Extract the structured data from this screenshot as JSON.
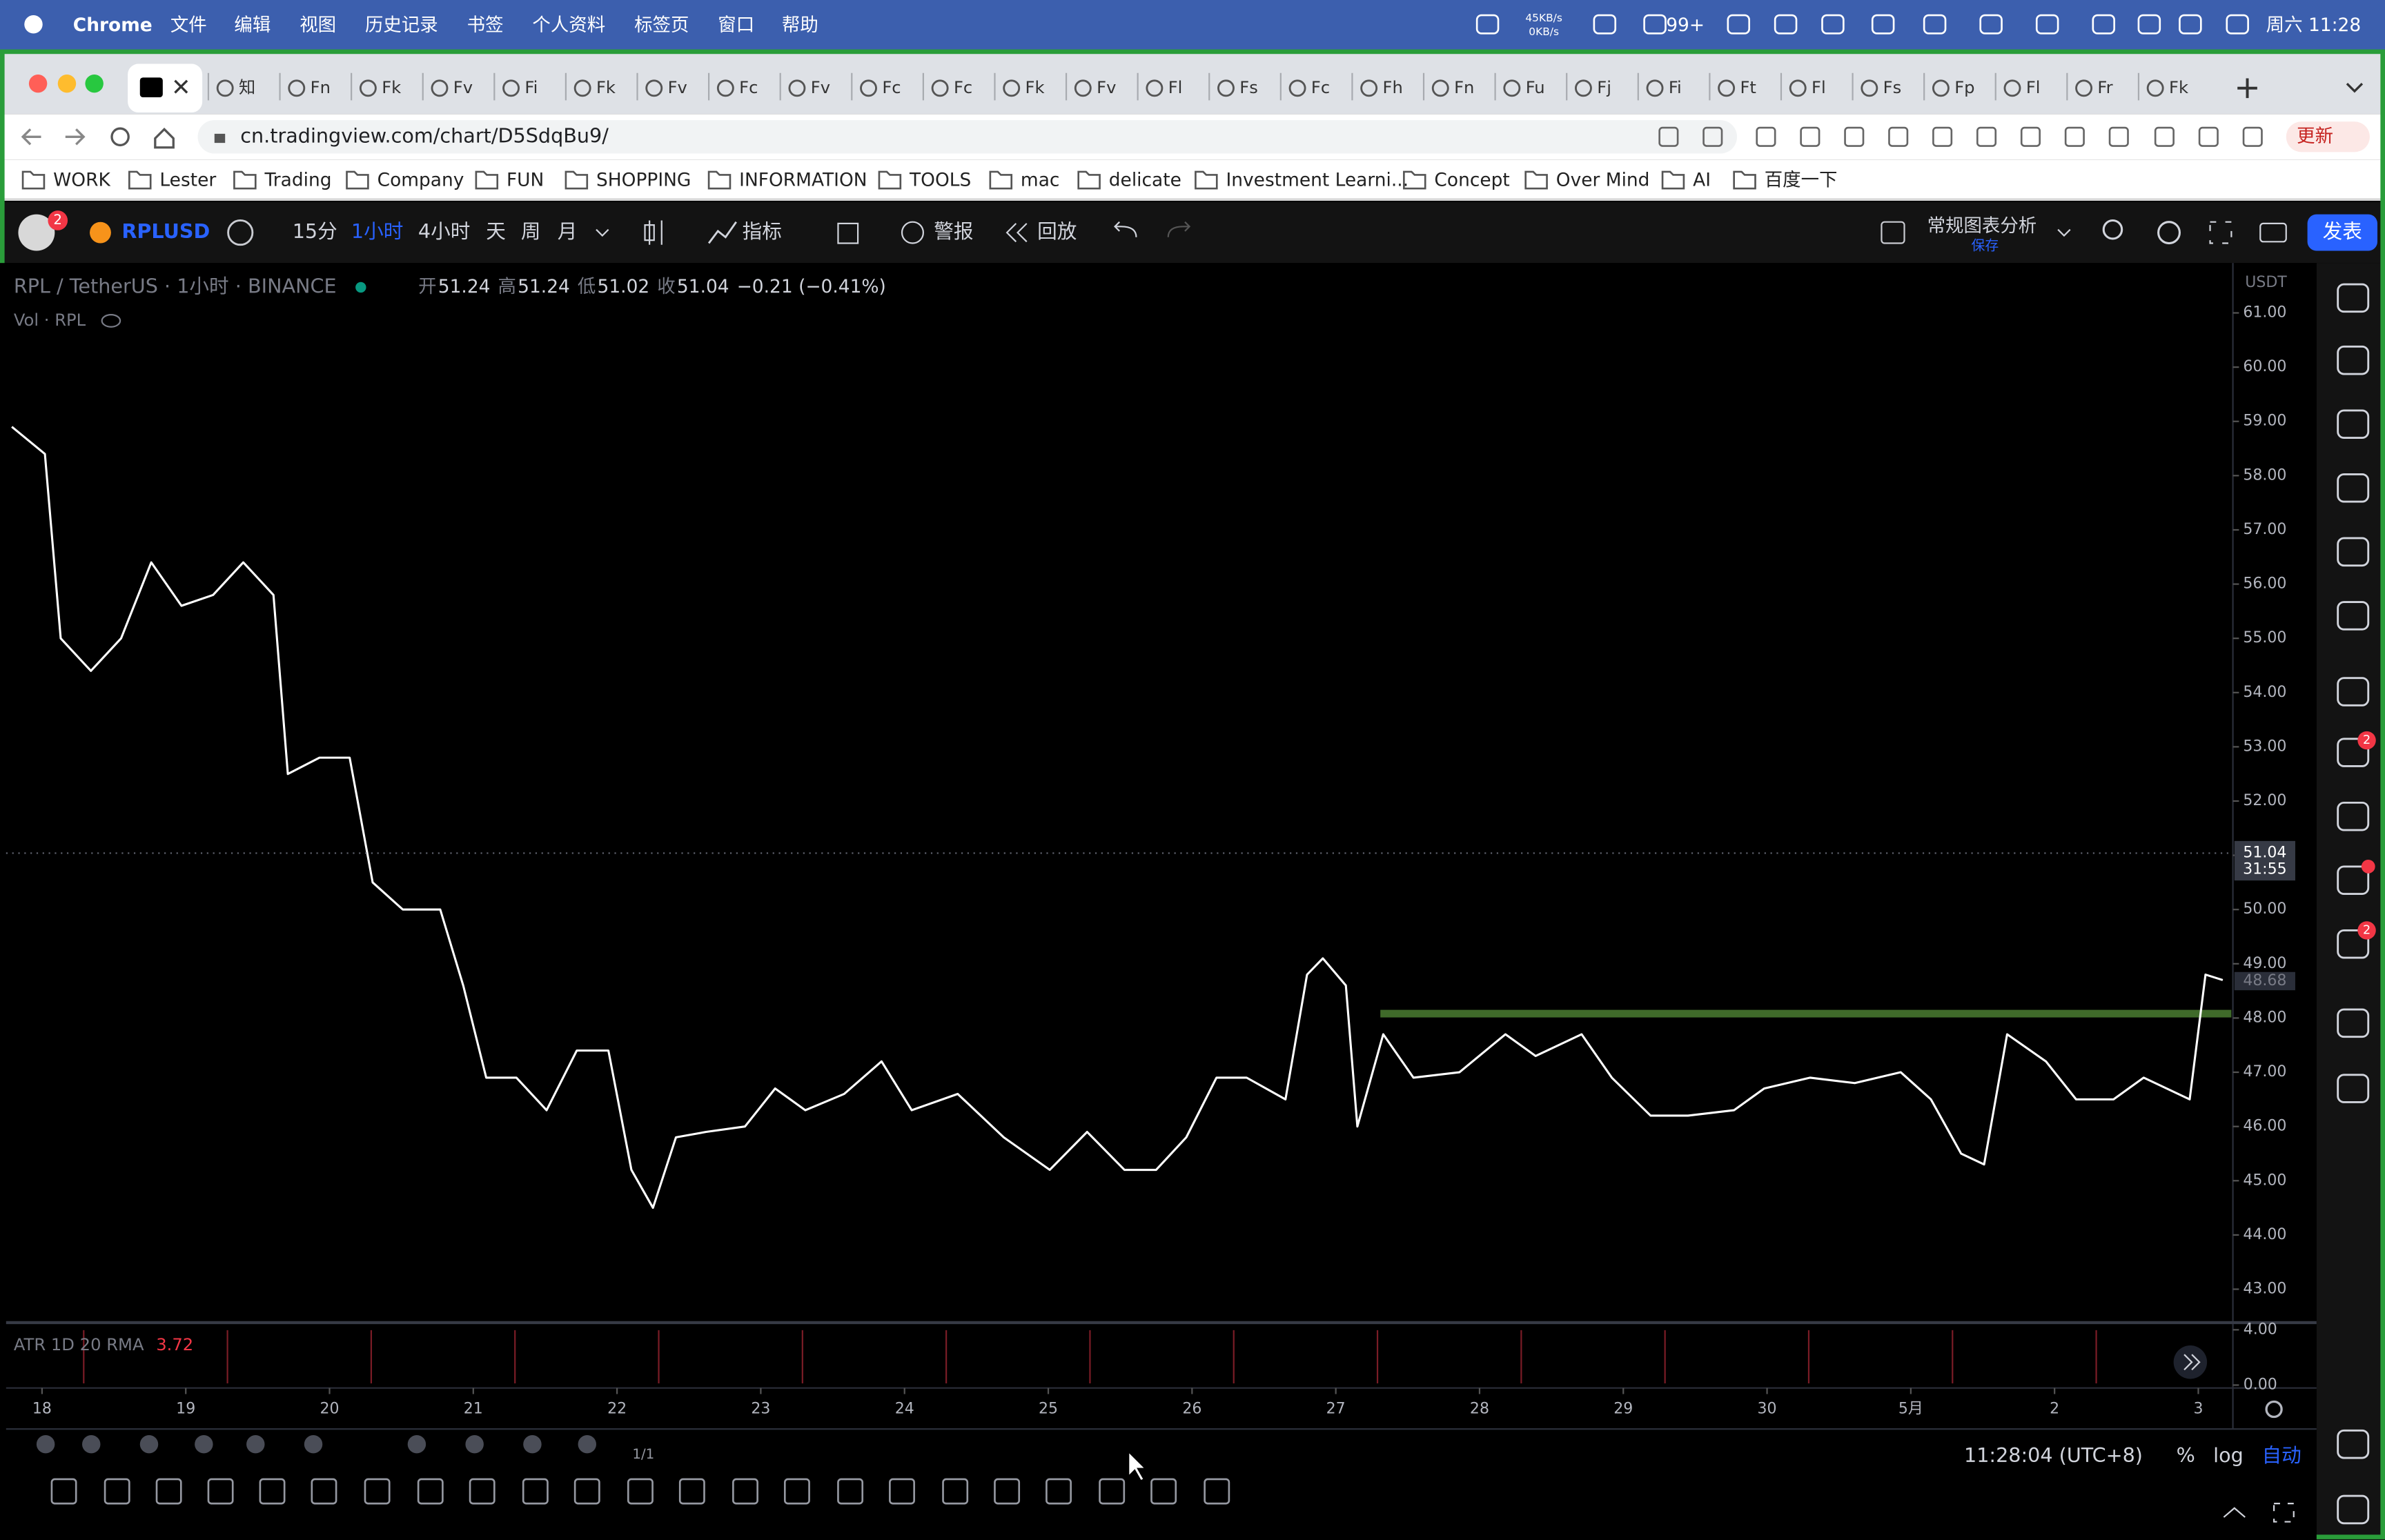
{
  "menubar": {
    "app": "Chrome",
    "items": [
      "文件",
      "编辑",
      "视图",
      "历史记录",
      "书签",
      "个人资料",
      "标签页",
      "窗口",
      "帮助"
    ],
    "net_up": "45KB/s",
    "net_down": "0KB/s",
    "notifications": "99+",
    "clock": "周六 11:28"
  },
  "tabs": [
    "知",
    "Fn",
    "Fk",
    "Fv",
    "Fi",
    "Fk",
    "Fv",
    "Fc",
    "Fv",
    "Fc",
    "Fc",
    "Fk",
    "Fv",
    "Fl",
    "Fs",
    "Fc",
    "Fh",
    "Fn",
    "Fu",
    "Fj",
    "Fi",
    "Ft",
    "Fl",
    "Fs",
    "Fp",
    "Fl",
    "Fr",
    "Fk"
  ],
  "browser": {
    "url": "cn.tradingview.com/chart/D5SdqBu9/",
    "update": "更新"
  },
  "bookmarks": [
    "WORK",
    "Lester",
    "Trading",
    "Company",
    "FUN",
    "SHOPPING",
    "INFORMATION",
    "TOOLS",
    "mac",
    "delicate",
    "Investment Learni...",
    "Concept",
    "Over Mind",
    "AI",
    "百度一下"
  ],
  "toolbar": {
    "badge": "2",
    "symbol": "RPLUSD",
    "intervals": [
      "15分",
      "1小时",
      "4小时",
      "天",
      "周",
      "月"
    ],
    "active_interval": 1,
    "indicators": "指标",
    "alert": "警报",
    "replay": "回放",
    "layout": "常规图表分析",
    "save": "保存",
    "publish": "发表"
  },
  "chart_data": {
    "type": "line",
    "title": "RPL / TetherUS · 1小时 · BINANCE",
    "ohlc": [
      "开",
      "51.24",
      "高",
      "51.24",
      "低",
      "51.02",
      "收",
      "51.04",
      "−0.21 (−0.41%)"
    ],
    "volume_label": "Vol · RPL",
    "currency": "USDT",
    "color": "#ffffff",
    "x": [
      -0.21,
      0.02,
      0.13,
      0.34,
      0.55,
      0.76,
      0.97,
      1.19,
      1.4,
      1.61,
      1.71,
      1.93,
      2.14,
      2.3,
      2.51,
      2.77,
      2.93,
      3.09,
      3.3,
      3.51,
      3.72,
      3.94,
      4.1,
      4.25,
      4.41,
      4.62,
      4.89,
      5.1,
      5.31,
      5.58,
      5.84,
      6.05,
      6.37,
      6.69,
      7.01,
      7.27,
      7.53,
      7.75,
      7.96,
      8.17,
      8.38,
      8.65,
      8.8,
      8.91,
      9.07,
      9.15,
      9.33,
      9.54,
      9.86,
      10.18,
      10.39,
      10.71,
      10.92,
      11.19,
      11.45,
      11.77,
      11.98,
      12.3,
      12.61,
      12.93,
      13.14,
      13.35,
      13.51,
      13.67,
      13.94,
      14.15,
      14.41,
      14.62,
      14.94,
      15.05,
      15.17
    ],
    "values": [
      58.9,
      58.4,
      55.0,
      54.4,
      55.0,
      56.4,
      55.6,
      55.8,
      56.4,
      55.8,
      52.5,
      52.8,
      52.8,
      50.5,
      50.0,
      50.0,
      48.6,
      46.9,
      46.9,
      46.3,
      47.4,
      47.4,
      45.2,
      44.5,
      45.8,
      45.9,
      46.0,
      46.7,
      46.3,
      46.6,
      47.2,
      46.3,
      46.6,
      45.8,
      45.2,
      45.9,
      45.2,
      45.2,
      45.8,
      46.9,
      46.9,
      46.5,
      48.8,
      49.1,
      48.6,
      46.0,
      47.7,
      46.9,
      47.0,
      47.7,
      47.3,
      47.7,
      46.9,
      46.2,
      46.2,
      46.3,
      46.7,
      46.9,
      46.8,
      47.0,
      46.5,
      45.5,
      45.3,
      47.7,
      47.2,
      46.5,
      46.5,
      46.9,
      46.5,
      48.8,
      48.7
    ],
    "xlim": [
      -0.25,
      15.23
    ],
    "xticks": [
      {
        "value": 0,
        "label": "18"
      },
      {
        "value": 1,
        "label": "19"
      },
      {
        "value": 2,
        "label": "20"
      },
      {
        "value": 3,
        "label": "21"
      },
      {
        "value": 4,
        "label": "22"
      },
      {
        "value": 5,
        "label": "23"
      },
      {
        "value": 6,
        "label": "24"
      },
      {
        "value": 7,
        "label": "25"
      },
      {
        "value": 8,
        "label": "26"
      },
      {
        "value": 9,
        "label": "27"
      },
      {
        "value": 10,
        "label": "28"
      },
      {
        "value": 11,
        "label": "29"
      },
      {
        "value": 12,
        "label": "30"
      },
      {
        "value": 13,
        "label": "5月"
      },
      {
        "value": 14,
        "label": "2"
      },
      {
        "value": 15,
        "label": "3"
      }
    ],
    "ylim": [
      42.44,
      61.78
    ],
    "yticks": [
      {
        "value": 43,
        "label": "43.00"
      },
      {
        "value": 44,
        "label": "44.00"
      },
      {
        "value": 45,
        "label": "45.00"
      },
      {
        "value": 46,
        "label": "46.00"
      },
      {
        "value": 47,
        "label": "47.00"
      },
      {
        "value": 48,
        "label": "48.00"
      },
      {
        "value": 49,
        "label": "49.00"
      },
      {
        "value": 50,
        "label": "50.00"
      },
      {
        "value": 51,
        "label": "51.00"
      },
      {
        "value": 52,
        "label": "52.00"
      },
      {
        "value": 53,
        "label": "53.00"
      },
      {
        "value": 54,
        "label": "54.00"
      },
      {
        "value": 55,
        "label": "55.00"
      },
      {
        "value": 56,
        "label": "56.00"
      },
      {
        "value": 57,
        "label": "57.00"
      },
      {
        "value": 58,
        "label": "58.00"
      },
      {
        "value": 59,
        "label": "59.00"
      },
      {
        "value": 60,
        "label": "60.00"
      },
      {
        "value": 61,
        "label": "61.00"
      }
    ],
    "grid": false,
    "last_price": 51.04,
    "countdown": "31:55",
    "price_marker": 48.68,
    "support_line": {
      "value": 48.08,
      "x_start": 9.31,
      "color": "#3f6a2a"
    },
    "indicator": {
      "name": "ATR 1D 20 RMA",
      "value": 3.72,
      "color": "#f23645",
      "ylim": [
        -0.1,
        4.3
      ],
      "yticks": [
        {
          "value": 4,
          "label": "4.00"
        },
        {
          "value": 0,
          "label": "0.00"
        }
      ]
    }
  },
  "bottom": {
    "page": "1/1",
    "time": "11:28:04 (UTC+8)",
    "percent": "%",
    "log": "log",
    "auto": "自动"
  },
  "sidebar": {
    "badges": [
      "2",
      "2"
    ]
  }
}
